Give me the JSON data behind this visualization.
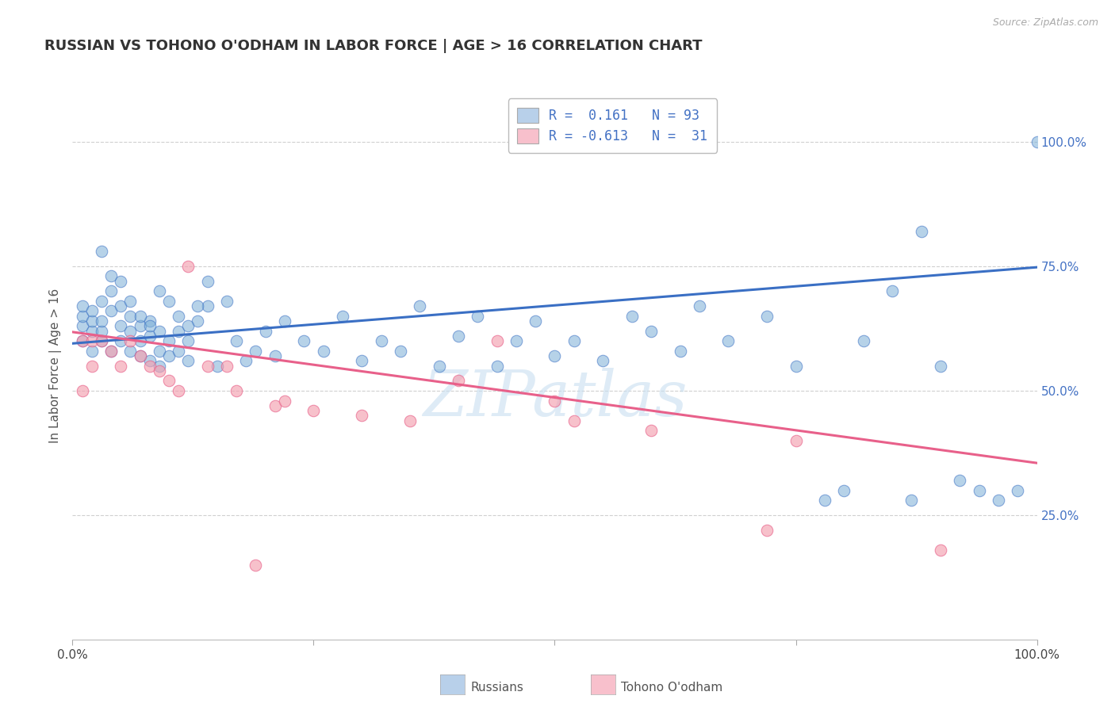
{
  "title": "RUSSIAN VS TOHONO O'ODHAM IN LABOR FORCE | AGE > 16 CORRELATION CHART",
  "source_text": "Source: ZipAtlas.com",
  "ylabel": "In Labor Force | Age > 16",
  "xlim": [
    0.0,
    1.0
  ],
  "ylim": [
    0.0,
    1.1
  ],
  "y_tick_positions": [
    0.25,
    0.5,
    0.75,
    1.0
  ],
  "y_tick_labels": [
    "25.0%",
    "50.0%",
    "75.0%",
    "100.0%"
  ],
  "x_tick_positions": [
    0.0,
    0.25,
    0.5,
    0.75,
    1.0
  ],
  "x_tick_labels": [
    "0.0%",
    "",
    "",
    "",
    "100.0%"
  ],
  "blue_color": "#7aaed6",
  "pink_color": "#f4a0b0",
  "blue_line_color": "#3a6fc4",
  "pink_line_color": "#e8608a",
  "blue_line_y0": 0.595,
  "blue_line_y1": 0.748,
  "pink_line_y0": 0.618,
  "pink_line_y1": 0.355,
  "watermark": "ZIPatlas",
  "legend_blue": "R =  0.161   N = 93",
  "legend_pink": "R = -0.613   N =  31",
  "legend_text_color": "#4472c4",
  "legend_num_color": "#4472c4",
  "fig_bg": "#ffffff",
  "plot_bg": "#ffffff",
  "grid_color": "#d0d0d0",
  "title_color": "#333333",
  "source_color": "#aaaaaa",
  "ylabel_color": "#555555",
  "right_tick_color": "#4472c4",
  "blue_alpha": 0.55,
  "pink_alpha": 0.65,
  "marker_size": 110,
  "blue_x": [
    0.01,
    0.01,
    0.01,
    0.01,
    0.02,
    0.02,
    0.02,
    0.02,
    0.03,
    0.03,
    0.03,
    0.03,
    0.04,
    0.04,
    0.04,
    0.05,
    0.05,
    0.05,
    0.06,
    0.06,
    0.06,
    0.07,
    0.07,
    0.07,
    0.08,
    0.08,
    0.08,
    0.09,
    0.09,
    0.09,
    0.1,
    0.1,
    0.11,
    0.11,
    0.12,
    0.12,
    0.13,
    0.14,
    0.15,
    0.16,
    0.17,
    0.18,
    0.19,
    0.2,
    0.21,
    0.22,
    0.24,
    0.26,
    0.28,
    0.3,
    0.32,
    0.34,
    0.36,
    0.38,
    0.4,
    0.42,
    0.44,
    0.46,
    0.48,
    0.5,
    0.52,
    0.55,
    0.58,
    0.6,
    0.63,
    0.65,
    0.68,
    0.72,
    0.75,
    0.78,
    0.8,
    0.82,
    0.85,
    0.87,
    0.88,
    0.9,
    0.92,
    0.94,
    0.96,
    0.98,
    1.0,
    0.03,
    0.04,
    0.05,
    0.06,
    0.07,
    0.08,
    0.09,
    0.1,
    0.11,
    0.12,
    0.13,
    0.14
  ],
  "blue_y": [
    0.63,
    0.65,
    0.67,
    0.6,
    0.62,
    0.64,
    0.58,
    0.66,
    0.68,
    0.6,
    0.62,
    0.64,
    0.58,
    0.7,
    0.66,
    0.63,
    0.6,
    0.67,
    0.58,
    0.62,
    0.65,
    0.6,
    0.57,
    0.63,
    0.56,
    0.61,
    0.64,
    0.58,
    0.62,
    0.55,
    0.6,
    0.57,
    0.62,
    0.58,
    0.56,
    0.6,
    0.64,
    0.67,
    0.55,
    0.68,
    0.6,
    0.56,
    0.58,
    0.62,
    0.57,
    0.64,
    0.6,
    0.58,
    0.65,
    0.56,
    0.6,
    0.58,
    0.67,
    0.55,
    0.61,
    0.65,
    0.55,
    0.6,
    0.64,
    0.57,
    0.6,
    0.56,
    0.65,
    0.62,
    0.58,
    0.67,
    0.6,
    0.65,
    0.55,
    0.28,
    0.3,
    0.6,
    0.7,
    0.28,
    0.82,
    0.55,
    0.32,
    0.3,
    0.28,
    0.3,
    1.0,
    0.78,
    0.73,
    0.72,
    0.68,
    0.65,
    0.63,
    0.7,
    0.68,
    0.65,
    0.63,
    0.67,
    0.72
  ],
  "pink_x": [
    0.01,
    0.01,
    0.02,
    0.02,
    0.03,
    0.04,
    0.05,
    0.06,
    0.07,
    0.08,
    0.09,
    0.1,
    0.11,
    0.12,
    0.14,
    0.16,
    0.17,
    0.19,
    0.21,
    0.22,
    0.25,
    0.3,
    0.35,
    0.4,
    0.44,
    0.5,
    0.52,
    0.6,
    0.72,
    0.75,
    0.9
  ],
  "pink_y": [
    0.6,
    0.5,
    0.55,
    0.6,
    0.6,
    0.58,
    0.55,
    0.6,
    0.57,
    0.55,
    0.54,
    0.52,
    0.5,
    0.75,
    0.55,
    0.55,
    0.5,
    0.15,
    0.47,
    0.48,
    0.46,
    0.45,
    0.44,
    0.52,
    0.6,
    0.48,
    0.44,
    0.42,
    0.22,
    0.4,
    0.18
  ]
}
